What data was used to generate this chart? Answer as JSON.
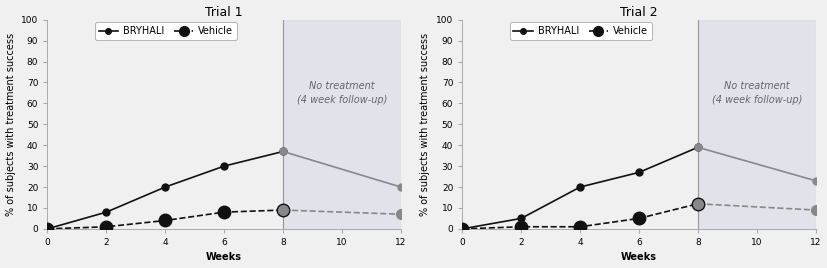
{
  "trial1": {
    "title": "Trial 1",
    "bryhali_weeks": [
      0,
      2,
      4,
      6,
      8,
      12
    ],
    "bryhali_values": [
      0,
      8,
      20,
      30,
      37,
      20
    ],
    "vehicle_weeks": [
      0,
      2,
      4,
      6,
      8,
      12
    ],
    "vehicle_values": [
      0,
      1,
      4,
      8,
      9,
      7
    ]
  },
  "trial2": {
    "title": "Trial 2",
    "bryhali_weeks": [
      0,
      2,
      4,
      6,
      8,
      12
    ],
    "bryhali_values": [
      0,
      5,
      20,
      27,
      39,
      23
    ],
    "vehicle_weeks": [
      0,
      2,
      4,
      6,
      8,
      12
    ],
    "vehicle_values": [
      0,
      1,
      1,
      5,
      12,
      9
    ]
  },
  "ylabel": "% of subjects with treatment success",
  "xlabel": "Weeks",
  "ylim": [
    0,
    100
  ],
  "xlim": [
    0,
    12
  ],
  "yticks": [
    0,
    10,
    20,
    30,
    40,
    50,
    60,
    70,
    80,
    90,
    100
  ],
  "xticks": [
    0,
    2,
    4,
    6,
    8,
    10,
    12
  ],
  "shade_start": 8,
  "shade_end": 12,
  "shade_color": "#d8d8e8",
  "shade_alpha": 0.55,
  "bg_color": "#f0f0f0",
  "bryhali_color": "#111111",
  "vehicle_color": "#111111",
  "followup_line_color": "#888888",
  "followup_marker_color": "#888888",
  "no_treatment_text": "No treatment\n(4 week follow-up)",
  "legend_bryhali": "BRYHALI",
  "legend_vehicle": "Vehicle",
  "bryhali_marker": "o",
  "vehicle_marker": "o",
  "bryhali_markersize_treat": 5,
  "bryhali_markersize_follow": 5,
  "vehicle_markersize_treat": 9,
  "vehicle_markersize_follow": 7,
  "title_fontsize": 9,
  "label_fontsize": 7,
  "tick_fontsize": 6.5,
  "legend_fontsize": 7,
  "annot_fontsize": 7
}
